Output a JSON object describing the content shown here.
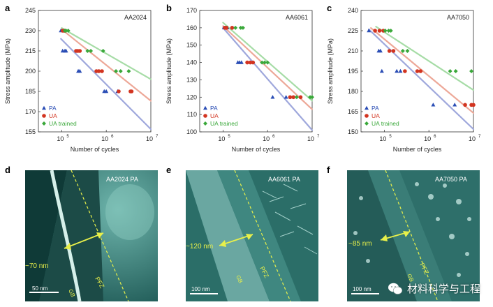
{
  "colors": {
    "PA": "#2a4db5",
    "UA": "#d23420",
    "UA_trained": "#3aa83a",
    "PA_line": "#9fa8dc",
    "UA_line": "#eda898",
    "UA_trained_line": "#a6dca6",
    "annotation": "#e8f04a"
  },
  "chart_data": [
    {
      "type": "scatter",
      "panel": "a",
      "title": "AA2024",
      "xlabel": "Number of cycles",
      "ylabel": "Stress amplitude (MPa)",
      "xscale": "log",
      "xlim": [
        30000,
        10000000
      ],
      "ylim": [
        155,
        245
      ],
      "xticks": [
        100000,
        1000000,
        10000000
      ],
      "xtick_labels": [
        "10",
        "10",
        "10"
      ],
      "xtick_exponents": [
        "5",
        "6",
        "7"
      ],
      "yticks": [
        155,
        170,
        185,
        200,
        215,
        230,
        245
      ],
      "ytick_labels": [
        "155",
        "170",
        "185",
        "200",
        "215",
        "230",
        "245"
      ],
      "legend": [
        "PA",
        "UA",
        "UA trained"
      ],
      "legend_position": "bottom-left",
      "series": [
        {
          "name": "PA",
          "marker": "triangle",
          "points": [
            [
              96000,
              230
            ],
            [
              105000,
              215
            ],
            [
              118000,
              215
            ],
            [
              125000,
              215
            ],
            [
              235000,
              200
            ],
            [
              255000,
              200
            ],
            [
              900000,
              185
            ],
            [
              1000000,
              185
            ],
            [
              1800000,
              185
            ]
          ],
          "trend": [
            [
              96000,
              224
            ],
            [
              10000000,
              157
            ]
          ]
        },
        {
          "name": "UA",
          "marker": "circle",
          "points": [
            [
              105000,
              230
            ],
            [
              112000,
              230
            ],
            [
              118000,
              230
            ],
            [
              210000,
              215
            ],
            [
              230000,
              215
            ],
            [
              255000,
              215
            ],
            [
              600000,
              200
            ],
            [
              680000,
              200
            ],
            [
              800000,
              200
            ],
            [
              1900000,
              185
            ],
            [
              3500000,
              185
            ],
            [
              3700000,
              185
            ]
          ],
          "trend": [
            [
              100000,
              231
            ],
            [
              10000000,
              178
            ]
          ]
        },
        {
          "name": "UA trained",
          "marker": "diamond",
          "points": [
            [
              118000,
              230
            ],
            [
              125000,
              230
            ],
            [
              140000,
              230
            ],
            [
              380000,
              215
            ],
            [
              450000,
              215
            ],
            [
              850000,
              215
            ],
            [
              1650000,
              200
            ],
            [
              2100000,
              200
            ],
            [
              3200000,
              200
            ]
          ],
          "trend": [
            [
              100000,
              232
            ],
            [
              10000000,
              194
            ]
          ]
        }
      ]
    },
    {
      "type": "scatter",
      "panel": "b",
      "title": "AA6061",
      "xlabel": "Number of cycles",
      "ylabel": "Stress amplitude (MPa)",
      "xscale": "log",
      "xlim": [
        30000,
        10000000
      ],
      "ylim": [
        100,
        170
      ],
      "xticks": [
        100000,
        1000000,
        10000000
      ],
      "xtick_labels": [
        "10",
        "10",
        "10"
      ],
      "xtick_exponents": [
        "5",
        "6",
        "7"
      ],
      "yticks": [
        100,
        110,
        120,
        130,
        140,
        150,
        160,
        170
      ],
      "ytick_labels": [
        "100",
        "110",
        "120",
        "130",
        "140",
        "150",
        "160",
        "170"
      ],
      "legend": [
        "PA",
        "UA",
        "UA trained"
      ],
      "legend_position": "bottom-left",
      "series": [
        {
          "name": "PA",
          "marker": "triangle",
          "points": [
            [
              105000,
              160
            ],
            [
              115000,
              160
            ],
            [
              125000,
              160
            ],
            [
              215000,
              140
            ],
            [
              235000,
              140
            ],
            [
              260000,
              140
            ],
            [
              1300000,
              120
            ],
            [
              2600000,
              120
            ]
          ],
          "trend": [
            [
              100000,
              160
            ],
            [
              10000000,
              101
            ]
          ]
        },
        {
          "name": "UA",
          "marker": "circle",
          "points": [
            [
              110000,
              160
            ],
            [
              120000,
              160
            ],
            [
              160000,
              160
            ],
            [
              350000,
              140
            ],
            [
              410000,
              140
            ],
            [
              470000,
              140
            ],
            [
              3200000,
              120
            ],
            [
              3800000,
              120
            ],
            [
              5500000,
              120
            ]
          ],
          "trend": [
            [
              100000,
              161
            ],
            [
              10000000,
              113
            ]
          ]
        },
        {
          "name": "UA trained",
          "marker": "diamond",
          "points": [
            [
              190000,
              160
            ],
            [
              250000,
              160
            ],
            [
              280000,
              160
            ],
            [
              750000,
              140
            ],
            [
              860000,
              140
            ],
            [
              1000000,
              140
            ],
            [
              4500000,
              120
            ],
            [
              9000000,
              120
            ],
            [
              10000000,
              120
            ]
          ],
          "trend": [
            [
              100000,
              163
            ],
            [
              10000000,
              118
            ]
          ]
        }
      ]
    },
    {
      "type": "scatter",
      "panel": "c",
      "title": "AA7050",
      "xlabel": "Number of cycles",
      "ylabel": "Stress amplitude (MPa)",
      "xscale": "log",
      "xlim": [
        30000,
        10000000
      ],
      "ylim": [
        150,
        240
      ],
      "xticks": [
        100000,
        1000000,
        10000000
      ],
      "xtick_labels": [
        "10",
        "10",
        "10"
      ],
      "xtick_exponents": [
        "5",
        "6",
        "7"
      ],
      "yticks": [
        150,
        165,
        180,
        195,
        210,
        225,
        240
      ],
      "ytick_labels": [
        "150",
        "165",
        "180",
        "195",
        "210",
        "225",
        "240"
      ],
      "legend": [
        "PA",
        "UA",
        "UA trained"
      ],
      "legend_position": "bottom-left",
      "series": [
        {
          "name": "PA",
          "marker": "triangle",
          "points": [
            [
              45000,
              225
            ],
            [
              75000,
              210
            ],
            [
              82000,
              210
            ],
            [
              88000,
              195
            ],
            [
              190000,
              195
            ],
            [
              230000,
              195
            ],
            [
              1250000,
              170
            ],
            [
              3800000,
              170
            ]
          ],
          "trend": [
            [
              45000,
              226
            ],
            [
              10000000,
              152
            ]
          ]
        },
        {
          "name": "UA",
          "marker": "circle",
          "points": [
            [
              62000,
              225
            ],
            [
              78000,
              225
            ],
            [
              95000,
              225
            ],
            [
              130000,
              210
            ],
            [
              160000,
              210
            ],
            [
              290000,
              195
            ],
            [
              550000,
              195
            ],
            [
              650000,
              195
            ],
            [
              6500000,
              170
            ],
            [
              9000000,
              170
            ],
            [
              10000000,
              170
            ]
          ],
          "trend": [
            [
              50000,
              227
            ],
            [
              10000000,
              164
            ]
          ]
        },
        {
          "name": "UA trained",
          "marker": "diamond",
          "points": [
            [
              105000,
              225
            ],
            [
              125000,
              225
            ],
            [
              140000,
              225
            ],
            [
              260000,
              210
            ],
            [
              330000,
              210
            ],
            [
              3000000,
              195
            ],
            [
              4000000,
              195
            ],
            [
              9000000,
              195
            ]
          ],
          "trend": [
            [
              65000,
              228
            ],
            [
              10000000,
              181
            ]
          ]
        }
      ]
    }
  ],
  "micrographs": [
    {
      "panel": "d",
      "label": "AA2024 PA",
      "width": "~70 nm",
      "zone": "PFZ",
      "boundary": "GB",
      "scalebar": "50 nm"
    },
    {
      "panel": "e",
      "label": "AA6061 PA",
      "width": "~120 nm",
      "zone": "PFZ",
      "boundary": "GB",
      "scalebar": "100 nm"
    },
    {
      "panel": "f",
      "label": "AA7050 PA",
      "width": "~85 nm",
      "zone": "PFZ",
      "boundary": "GB",
      "scalebar": "100 nm"
    }
  ],
  "watermark": {
    "text": "材料科学与工程",
    "icon": "wechat-icon"
  }
}
